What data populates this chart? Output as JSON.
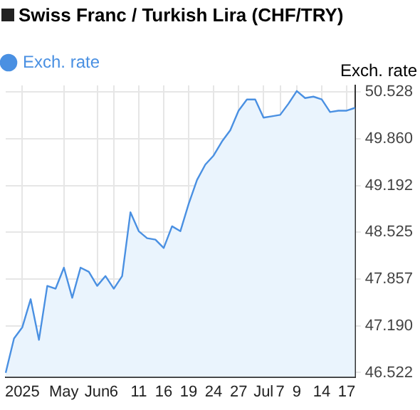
{
  "chart_data": {
    "type": "area",
    "title": "Swiss Franc / Turkish Lira (CHF/TRY)",
    "ylabel": "Exch. rate",
    "categories": [
      null,
      null,
      "2025",
      null,
      null,
      null,
      null,
      "May",
      null,
      null,
      null,
      "Jun",
      null,
      "6",
      null,
      null,
      "11",
      null,
      null,
      "16",
      null,
      null,
      "19",
      null,
      null,
      "24",
      null,
      null,
      "27",
      null,
      null,
      "Jul",
      null,
      "7",
      null,
      "9",
      null,
      null,
      "14",
      null,
      null,
      "17",
      null
    ],
    "series": [
      {
        "name": "Exch. rate",
        "color": "#4a90e2",
        "values": [
          46.52,
          47.01,
          47.17,
          47.57,
          46.99,
          47.76,
          47.72,
          48.02,
          47.59,
          48.02,
          47.96,
          47.76,
          47.9,
          47.72,
          47.9,
          48.81,
          48.54,
          48.44,
          48.42,
          48.3,
          48.61,
          48.54,
          48.93,
          49.27,
          49.49,
          49.62,
          49.82,
          49.98,
          50.26,
          50.42,
          50.42,
          50.16,
          50.18,
          50.2,
          50.36,
          50.54,
          50.44,
          50.46,
          50.42,
          50.24,
          50.26,
          50.26,
          50.3
        ]
      }
    ],
    "ylim": [
      46.46,
      50.62
    ],
    "yticks": [
      46.522,
      {
        "value": 47.19,
        "label": "47.190"
      },
      47.857,
      48.525,
      49.192,
      {
        "value": 49.86,
        "label": "49.860"
      },
      50.528
    ],
    "grid": true,
    "legend": "top left"
  }
}
